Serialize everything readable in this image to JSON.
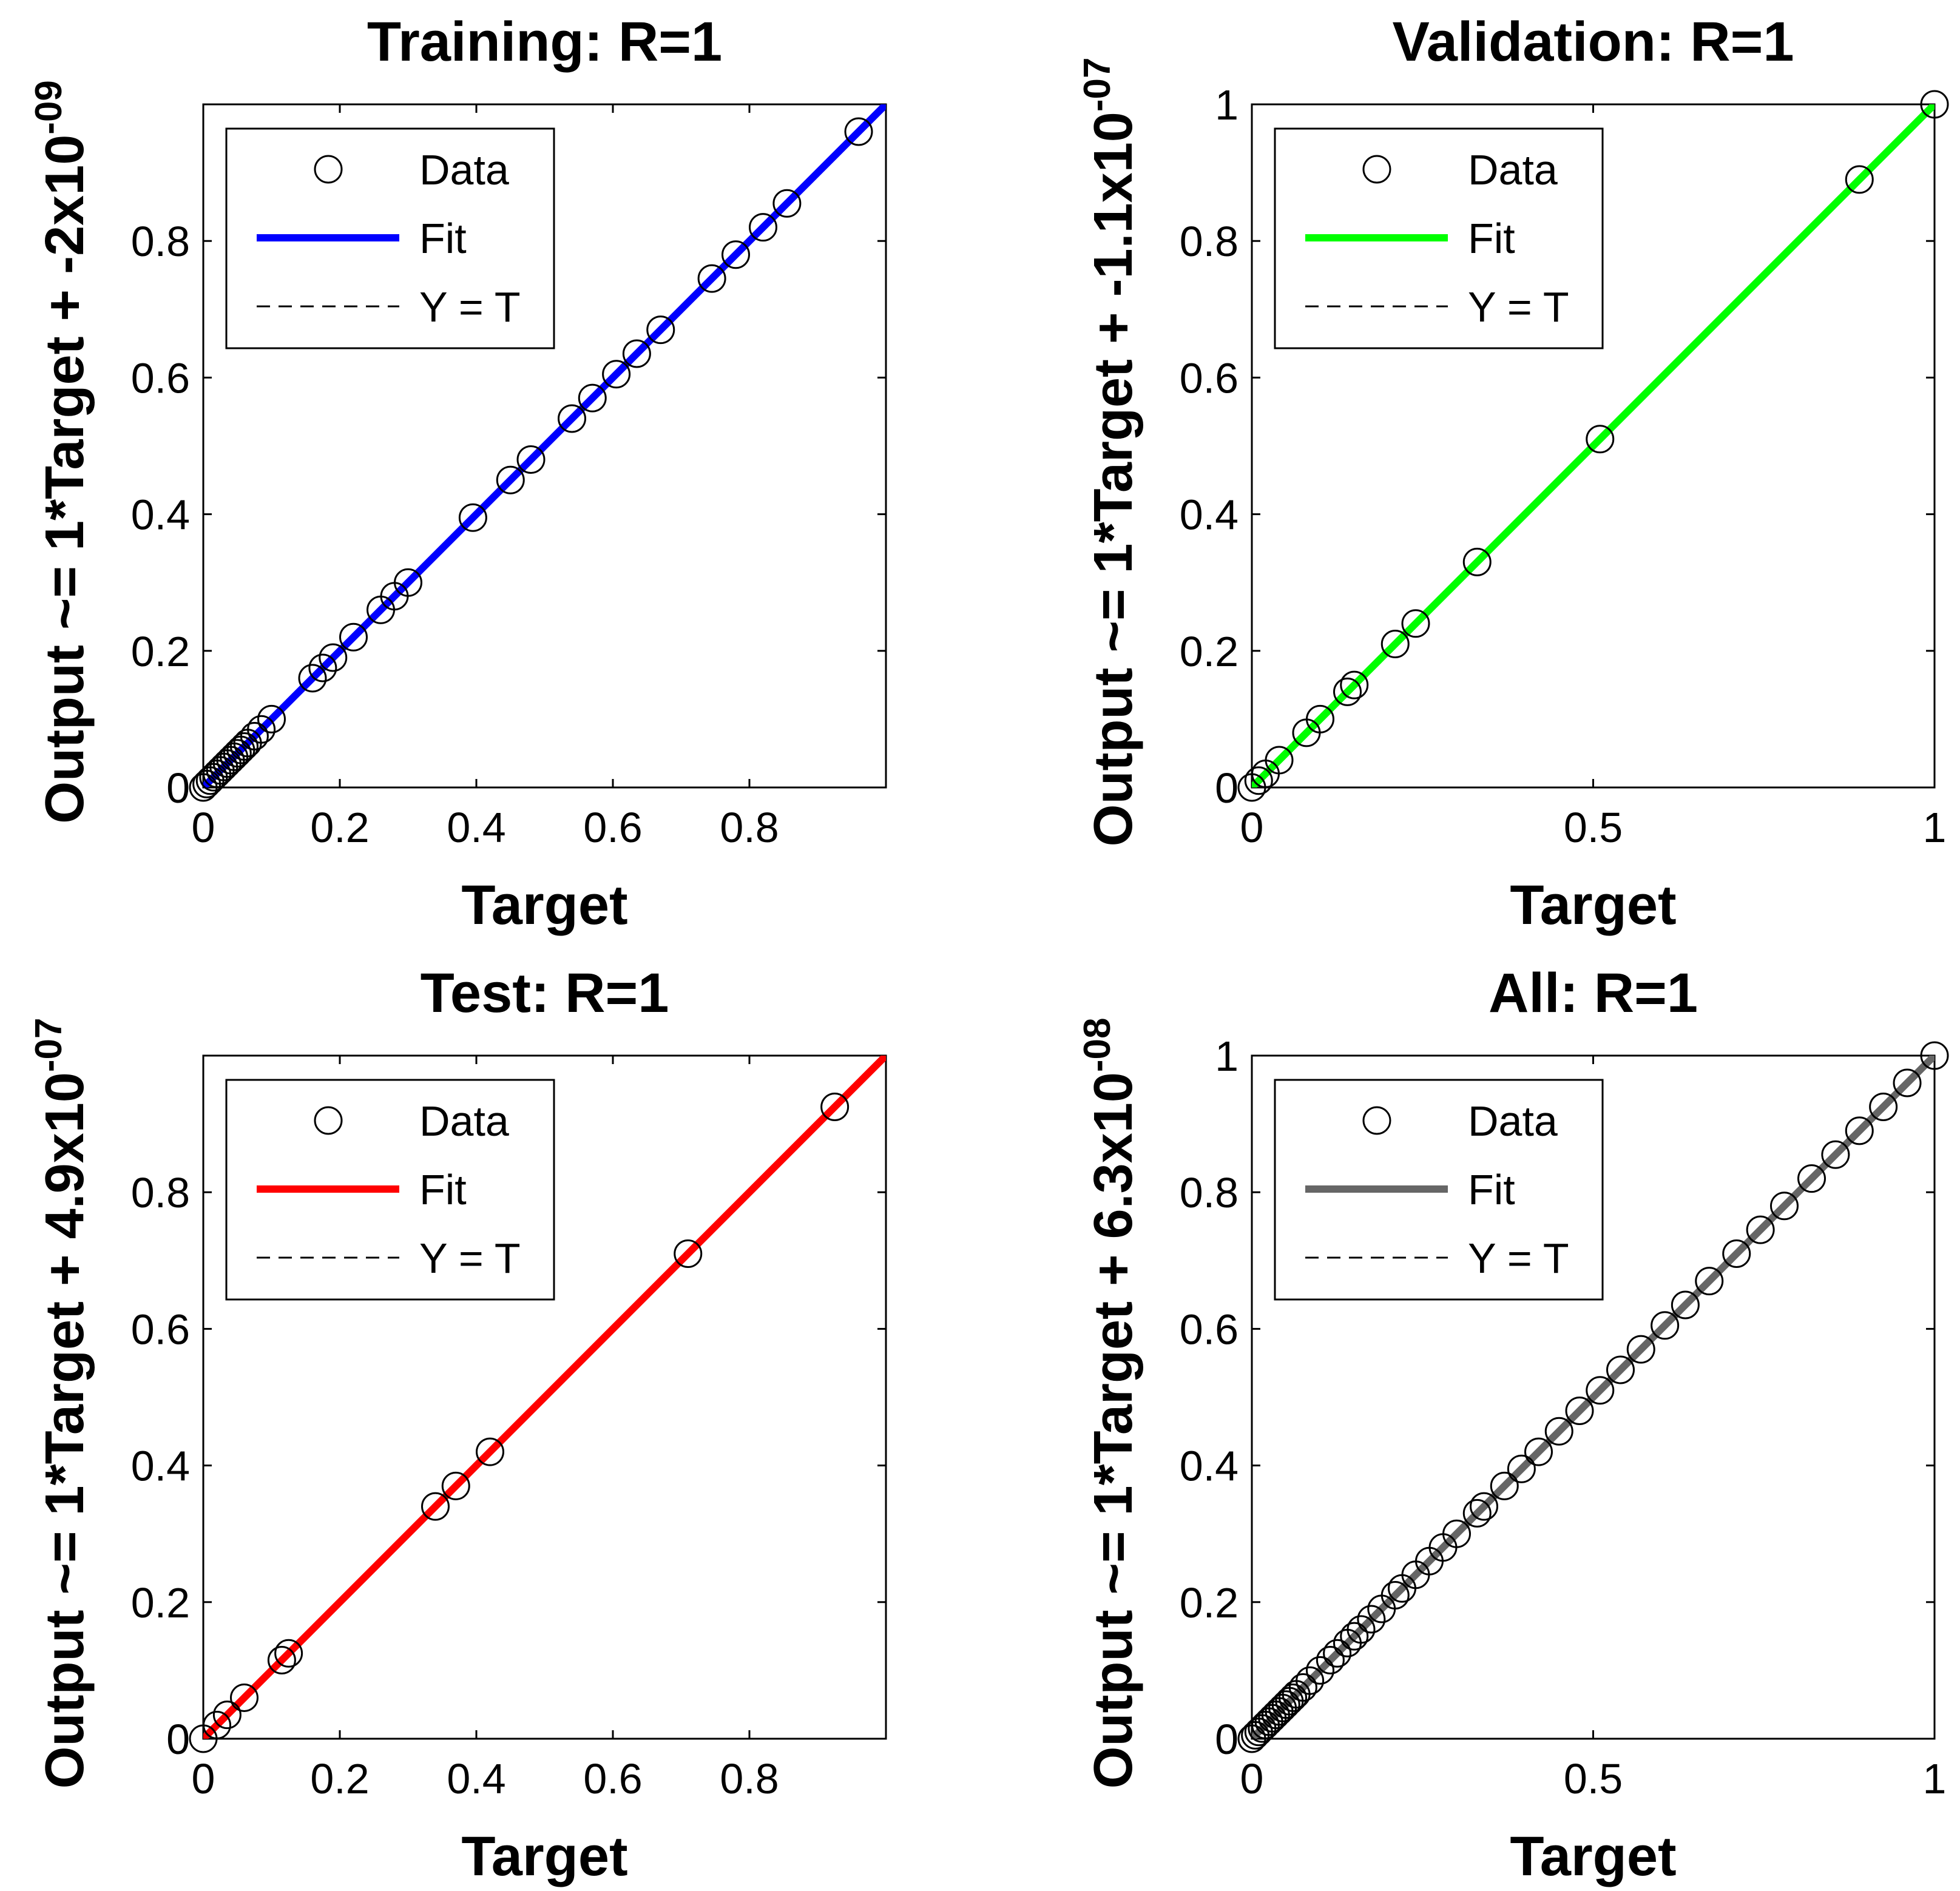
{
  "chart_data": [
    {
      "type": "scatter",
      "title": "Training: R=1",
      "xlabel": "Target",
      "ylabel": "Output ~= 1*Target + -2x10",
      "ylabel_exponent": "-09",
      "xlim": [
        0,
        1
      ],
      "ylim": [
        0,
        1
      ],
      "xticks": [
        0,
        0.2,
        0.4,
        0.6,
        0.8
      ],
      "xtick_labels": [
        "0",
        "0.2",
        "0.4",
        "0.6",
        "0.8"
      ],
      "yticks": [
        0,
        0.2,
        0.4,
        0.6,
        0.8
      ],
      "ytick_labels": [
        "0",
        "0.2",
        "0.4",
        "0.6",
        "0.8"
      ],
      "fit_color": "#0000ff",
      "legend": [
        "Data",
        "Fit",
        "Y = T"
      ],
      "data": [
        0,
        0.005,
        0.01,
        0.015,
        0.02,
        0.025,
        0.03,
        0.035,
        0.04,
        0.045,
        0.05,
        0.055,
        0.06,
        0.065,
        0.075,
        0.085,
        0.1,
        0.16,
        0.175,
        0.19,
        0.22,
        0.26,
        0.28,
        0.3,
        0.395,
        0.45,
        0.48,
        0.54,
        0.57,
        0.605,
        0.635,
        0.67,
        0.745,
        0.78,
        0.82,
        0.855,
        0.96
      ]
    },
    {
      "type": "scatter",
      "title": "Validation: R=1",
      "xlabel": "Target",
      "ylabel": "Output ~= 1*Target + -1.1x10",
      "ylabel_exponent": "-07",
      "xlim": [
        0,
        1
      ],
      "ylim": [
        0,
        1
      ],
      "xticks": [
        0,
        0.5,
        1
      ],
      "xtick_labels": [
        "0",
        "0.5",
        "1"
      ],
      "yticks": [
        0,
        0.2,
        0.4,
        0.6,
        0.8,
        1
      ],
      "ytick_labels": [
        "0",
        "0.2",
        "0.4",
        "0.6",
        "0.8",
        "1"
      ],
      "fit_color": "#00ff00",
      "legend": [
        "Data",
        "Fit",
        "Y = T"
      ],
      "data": [
        0,
        0.01,
        0.02,
        0.04,
        0.08,
        0.1,
        0.14,
        0.15,
        0.21,
        0.24,
        0.33,
        0.51,
        0.89,
        1.0
      ]
    },
    {
      "type": "scatter",
      "title": "Test: R=1",
      "xlabel": "Target",
      "ylabel": "Output ~= 1*Target + 4.9x10",
      "ylabel_exponent": "-07",
      "xlim": [
        0,
        1
      ],
      "ylim": [
        0,
        1
      ],
      "xticks": [
        0,
        0.2,
        0.4,
        0.6,
        0.8
      ],
      "xtick_labels": [
        "0",
        "0.2",
        "0.4",
        "0.6",
        "0.8"
      ],
      "yticks": [
        0,
        0.2,
        0.4,
        0.6,
        0.8
      ],
      "ytick_labels": [
        "0",
        "0.2",
        "0.4",
        "0.6",
        "0.8"
      ],
      "fit_color": "#ff0000",
      "legend": [
        "Data",
        "Fit",
        "Y = T"
      ],
      "data": [
        0,
        0.02,
        0.035,
        0.06,
        0.115,
        0.125,
        0.34,
        0.37,
        0.42,
        0.71,
        0.925
      ]
    },
    {
      "type": "scatter",
      "title": "All: R=1",
      "xlabel": "Target",
      "ylabel": "Output ~= 1*Target + 6.3x10",
      "ylabel_exponent": "-08",
      "xlim": [
        0,
        1
      ],
      "ylim": [
        0,
        1
      ],
      "xticks": [
        0,
        0.5,
        1
      ],
      "xtick_labels": [
        "0",
        "0.5",
        "1"
      ],
      "yticks": [
        0,
        0.2,
        0.4,
        0.6,
        0.8,
        1
      ],
      "ytick_labels": [
        "0",
        "0.2",
        "0.4",
        "0.6",
        "0.8",
        "1"
      ],
      "fit_color": "#666666",
      "legend": [
        "Data",
        "Fit",
        "Y = T"
      ],
      "data": [
        0,
        0.005,
        0.01,
        0.015,
        0.02,
        0.025,
        0.03,
        0.035,
        0.04,
        0.045,
        0.05,
        0.055,
        0.06,
        0.065,
        0.075,
        0.085,
        0.1,
        0.115,
        0.125,
        0.14,
        0.15,
        0.16,
        0.175,
        0.19,
        0.21,
        0.22,
        0.24,
        0.26,
        0.28,
        0.3,
        0.33,
        0.34,
        0.37,
        0.395,
        0.42,
        0.45,
        0.48,
        0.51,
        0.54,
        0.57,
        0.605,
        0.635,
        0.67,
        0.71,
        0.745,
        0.78,
        0.82,
        0.855,
        0.89,
        0.925,
        0.96,
        1.0
      ]
    }
  ]
}
